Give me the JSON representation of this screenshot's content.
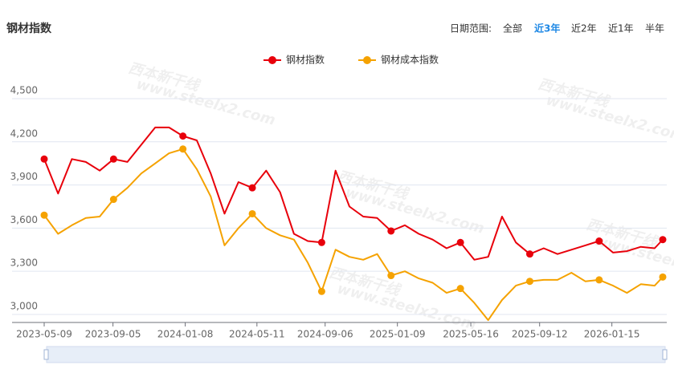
{
  "header": {
    "title": "钢材指数",
    "range_label": "日期范围:",
    "range_options": [
      "全部",
      "近3年",
      "近2年",
      "近1年",
      "半年"
    ],
    "active_option": 1
  },
  "watermarks": [
    "www.steelx2.com",
    "西本新干线"
  ],
  "chart_data": {
    "type": "line",
    "x": [
      "2023-05-09",
      "2023-06-02",
      "2023-06-26",
      "2023-07-20",
      "2023-08-13",
      "2023-09-06",
      "2023-09-30",
      "2023-10-24",
      "2023-11-17",
      "2023-12-11",
      "2024-01-04",
      "2024-01-28",
      "2024-02-21",
      "2024-03-16",
      "2024-04-09",
      "2024-05-03",
      "2024-05-27",
      "2024-06-20",
      "2024-07-14",
      "2024-08-07",
      "2024-08-31",
      "2024-09-24",
      "2024-10-18",
      "2024-11-11",
      "2024-12-05",
      "2024-12-29",
      "2025-01-22",
      "2025-02-15",
      "2025-03-11",
      "2025-04-04",
      "2025-04-28",
      "2025-05-22",
      "2025-06-15",
      "2025-07-09",
      "2025-08-02",
      "2025-08-26",
      "2025-09-19",
      "2025-10-13",
      "2025-11-06",
      "2025-11-30",
      "2025-12-24",
      "2026-01-17",
      "2026-02-10",
      "2026-03-06",
      "2026-03-30",
      "2026-04-13"
    ],
    "series": [
      {
        "name": "钢材指数",
        "color": "#e8000b",
        "values": [
          4080,
          3840,
          4080,
          4060,
          4000,
          4080,
          4060,
          4180,
          4300,
          4300,
          4240,
          4210,
          3980,
          3700,
          3920,
          3880,
          4000,
          3850,
          3560,
          3510,
          3500,
          4000,
          3750,
          3680,
          3670,
          3580,
          3620,
          3560,
          3520,
          3460,
          3500,
          3380,
          3400,
          3680,
          3500,
          3420,
          3460,
          3420,
          3450,
          3480,
          3510,
          3430,
          3440,
          3470,
          3460,
          3520
        ]
      },
      {
        "name": "钢材成本指数",
        "color": "#f5a200",
        "values": [
          3690,
          3560,
          3620,
          3670,
          3680,
          3800,
          3880,
          3980,
          4050,
          4120,
          4150,
          4010,
          3820,
          3480,
          3600,
          3700,
          3600,
          3550,
          3520,
          3360,
          3160,
          3450,
          3400,
          3380,
          3420,
          3270,
          3300,
          3250,
          3220,
          3150,
          3180,
          3080,
          2960,
          3100,
          3200,
          3230,
          3240,
          3240,
          3290,
          3230,
          3240,
          3200,
          3150,
          3210,
          3200,
          3260
        ]
      }
    ],
    "xlim": [
      "2023-05-09",
      "2026-04-13"
    ],
    "xticks": [
      "2023-05-09",
      "2023-09-05",
      "2024-01-08",
      "2024-05-11",
      "2024-09-06",
      "2025-01-09",
      "2025-05-16",
      "2025-09-12",
      "2026-01-15"
    ],
    "ylim": [
      2944,
      4500
    ],
    "yticks": [
      {
        "value": 3000,
        "label": "3,000"
      },
      {
        "value": 3300,
        "label": "3,300"
      },
      {
        "value": 3600,
        "label": "3,600"
      },
      {
        "value": 3900,
        "label": "3,900"
      },
      {
        "value": 4200,
        "label": "4,200"
      },
      {
        "value": 4500,
        "label": "4,500"
      }
    ],
    "grid": true,
    "legend": "top"
  }
}
